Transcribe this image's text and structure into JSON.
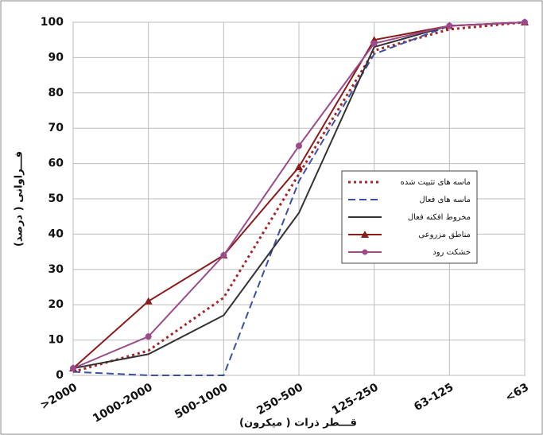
{
  "chart_data": {
    "type": "line",
    "x_label": "قـــطر ذرات ( میکرون)",
    "y_label": "فـــراوانی ( درصد)",
    "categories": [
      ">2000",
      "1000-2000",
      "500-1000",
      "250-500",
      "125-250",
      "63-125",
      "<63"
    ],
    "series": [
      {
        "name": "ماسه های تثبیت شده",
        "color": "#a3262a",
        "style": "dotted",
        "values": [
          1,
          7,
          22,
          57,
          92,
          98,
          100
        ]
      },
      {
        "name": "ماسه های فعال",
        "color": "#3a4fa8",
        "style": "dashed",
        "values": [
          1,
          0,
          0,
          55,
          91,
          99,
          100
        ]
      },
      {
        "name": "مخروط افکنه فعال",
        "color": "#333333",
        "style": "solid",
        "values": [
          2,
          6,
          17,
          46,
          93,
          99,
          100
        ]
      },
      {
        "name": "مناطق مزروعی",
        "color": "#8b1a1a",
        "style": "solid",
        "marker": "triangle",
        "values": [
          2,
          21,
          34,
          59,
          95,
          99,
          100
        ]
      },
      {
        "name": "خشکت رود",
        "color": "#9b4a8a",
        "style": "solid",
        "marker": "circle",
        "values": [
          2,
          11,
          34,
          65,
          94,
          99,
          100
        ]
      }
    ],
    "ylim": [
      0,
      100
    ],
    "yticks": [
      0,
      10,
      20,
      30,
      40,
      50,
      60,
      70,
      80,
      90,
      100
    ],
    "grid": true
  }
}
